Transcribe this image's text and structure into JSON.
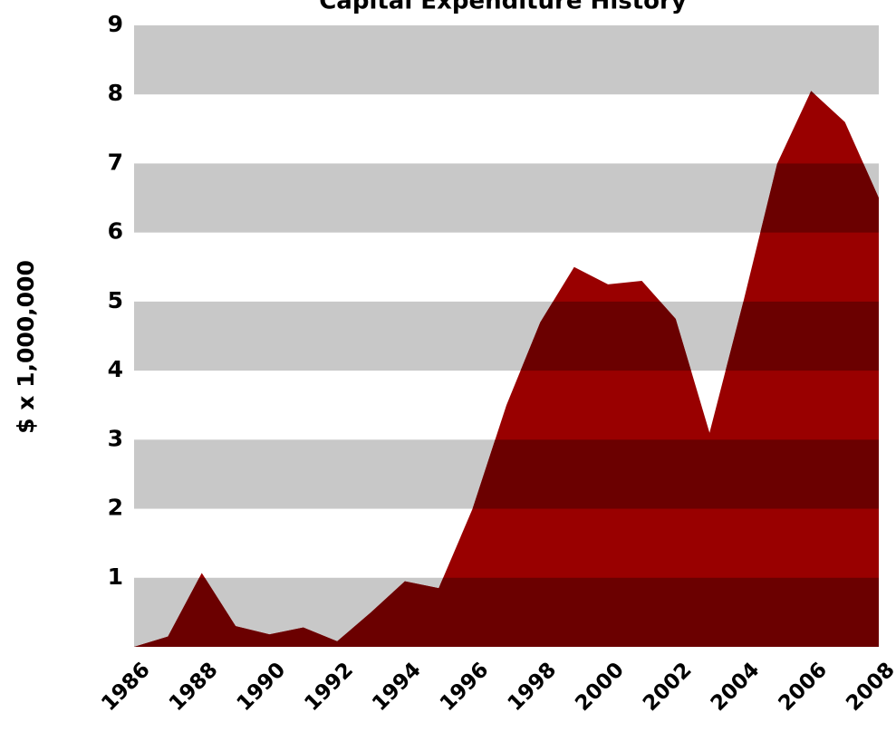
{
  "chart_data": {
    "type": "area",
    "title": "Capital Expenditure History",
    "y_label": "$ x 1,000,000",
    "x": [
      1986,
      1987,
      1988,
      1989,
      1990,
      1991,
      1992,
      1993,
      1994,
      1995,
      1996,
      1997,
      1998,
      1999,
      2000,
      2001,
      2002,
      2003,
      2004,
      2005,
      2006,
      2007,
      2008
    ],
    "values": [
      0,
      0.15,
      1.07,
      0.3,
      0.18,
      0.28,
      0.08,
      0.5,
      0.95,
      0.85,
      2.0,
      3.5,
      4.7,
      5.5,
      5.25,
      5.3,
      4.75,
      3.1,
      5.0,
      7.0,
      8.05,
      7.6,
      6.5
    ],
    "color": "#990000",
    "band_overlay_color": "#6b0000",
    "band_color": "#c8c8c8",
    "xlim": [
      1986,
      2008
    ],
    "xticks": [
      1986,
      1988,
      1990,
      1992,
      1994,
      1996,
      1998,
      2000,
      2002,
      2004,
      2006,
      2008
    ],
    "ylim": [
      0,
      9
    ],
    "yticks": [
      1,
      2,
      3,
      4,
      5,
      6,
      7,
      8,
      9
    ],
    "grid": true
  }
}
